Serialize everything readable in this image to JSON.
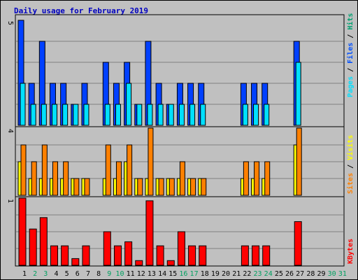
{
  "title": "Daily usage for February 2019",
  "colors": {
    "background": "#c0c0c0",
    "title": "#0000c0",
    "hits": "#0040ff",
    "files": "#0050ff",
    "pages": "#00e0ff",
    "visits": "#ff8000",
    "sites": "#ffff00",
    "kbytes": "#ff0000",
    "weekend_day": "#00a060",
    "weekday_day": "#000000",
    "sep_blue": "#0050ff",
    "sep_black": "#000000"
  },
  "labels": {
    "panel1_axis_max": "5",
    "panel2_axis_max": "4",
    "panel3_axis_max": "1",
    "hits": "Hits",
    "files": "Files",
    "pages": "Pages",
    "visits": "Visits",
    "sites": "Sites",
    "kbytes": "KBytes",
    "separator": "/"
  },
  "chart_data": {
    "type": "bar",
    "title": "Daily usage for February 2019",
    "categories": [
      "1",
      "2",
      "3",
      "4",
      "5",
      "6",
      "7",
      "8",
      "9",
      "10",
      "11",
      "12",
      "13",
      "14",
      "15",
      "16",
      "17",
      "18",
      "19",
      "20",
      "21",
      "22",
      "23",
      "24",
      "25",
      "26",
      "27",
      "28",
      "29",
      "30",
      "31"
    ],
    "weekend_days": [
      "2",
      "3",
      "9",
      "10",
      "16",
      "17",
      "23",
      "24",
      "30",
      "31"
    ],
    "panels": [
      {
        "name": "hits-files-pages",
        "ylim": [
          0,
          5
        ],
        "series": [
          {
            "name": "Hits",
            "values": [
              5,
              2,
              4,
              2,
              2,
              1,
              2,
              0,
              3,
              2,
              3,
              1,
              4,
              2,
              1,
              2,
              2,
              2,
              0,
              0,
              0,
              2,
              2,
              2,
              0,
              0,
              4,
              0,
              0,
              0,
              0
            ]
          },
          {
            "name": "Files",
            "values": [
              5,
              2,
              4,
              2,
              2,
              1,
              2,
              0,
              3,
              2,
              3,
              1,
              4,
              2,
              1,
              2,
              2,
              2,
              0,
              0,
              0,
              2,
              2,
              2,
              0,
              0,
              4,
              0,
              0,
              0,
              0
            ]
          },
          {
            "name": "Pages",
            "values": [
              2,
              1,
              1,
              1,
              1,
              1,
              1,
              0,
              1,
              1,
              2,
              1,
              1,
              1,
              1,
              1,
              1,
              1,
              0,
              0,
              0,
              1,
              1,
              1,
              0,
              0,
              3,
              0,
              0,
              0,
              0
            ]
          }
        ]
      },
      {
        "name": "visits-sites",
        "ylim": [
          0,
          4
        ],
        "series": [
          {
            "name": "Visits",
            "values": [
              3,
              2,
              3,
              2,
              2,
              1,
              1,
              0,
              3,
              2,
              3,
              1,
              4,
              1,
              1,
              2,
              1,
              1,
              0,
              0,
              0,
              2,
              2,
              2,
              0,
              0,
              4,
              0,
              0,
              0,
              0
            ]
          },
          {
            "name": "Sites",
            "values": [
              2,
              1,
              1,
              1,
              1,
              1,
              1,
              0,
              1,
              1,
              2,
              1,
              1,
              1,
              1,
              1,
              1,
              1,
              0,
              0,
              0,
              1,
              1,
              1,
              0,
              0,
              3,
              0,
              0,
              0,
              0
            ]
          }
        ]
      },
      {
        "name": "kbytes",
        "ylim": [
          0,
          1
        ],
        "series": [
          {
            "name": "KBytes",
            "values": [
              1.0,
              0.54,
              0.71,
              0.29,
              0.29,
              0.1,
              0.29,
              0,
              0.5,
              0.29,
              0.35,
              0.07,
              0.96,
              0.29,
              0.07,
              0.5,
              0.29,
              0.29,
              0,
              0,
              0,
              0.29,
              0.29,
              0.29,
              0,
              0,
              0.65,
              0,
              0,
              0,
              0
            ]
          }
        ]
      }
    ]
  }
}
